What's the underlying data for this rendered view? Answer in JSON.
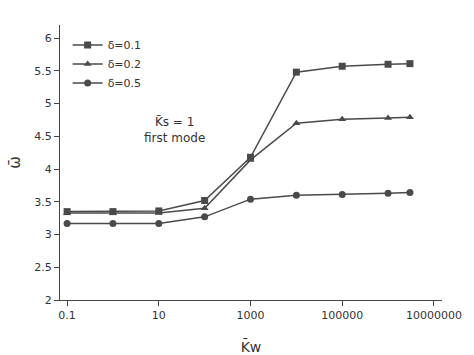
{
  "chart_data": {
    "type": "line",
    "x": [
      0.1,
      1,
      10,
      100,
      1000,
      10000,
      100000,
      1000000,
      3000000
    ],
    "series": [
      {
        "name": "δ=0.1",
        "marker": "square",
        "values": [
          3.35,
          3.35,
          3.36,
          3.52,
          4.18,
          5.48,
          5.57,
          5.6,
          5.61
        ]
      },
      {
        "name": "δ=0.2",
        "marker": "triangle-up",
        "values": [
          3.33,
          3.33,
          3.33,
          3.4,
          4.14,
          4.7,
          4.76,
          4.78,
          4.79
        ]
      },
      {
        "name": "δ=0.5",
        "marker": "circle",
        "values": [
          3.17,
          3.17,
          3.17,
          3.27,
          3.54,
          3.6,
          3.61,
          3.63,
          3.64
        ]
      }
    ],
    "color": "#4a4a4a",
    "xlabel": "K̄w",
    "ylabel": "ω̄",
    "annotation": "K̄s = 1\nfirst mode",
    "xlim": [
      0.07,
      15000000
    ],
    "xticks": [
      0.1,
      10,
      1000,
      100000,
      10000000
    ],
    "ylim": [
      2,
      6.2
    ],
    "yticks": [
      2,
      2.5,
      3,
      3.5,
      4,
      4.5,
      5,
      5.5,
      6
    ],
    "log": "x",
    "grid": false,
    "legend": "upper left"
  }
}
